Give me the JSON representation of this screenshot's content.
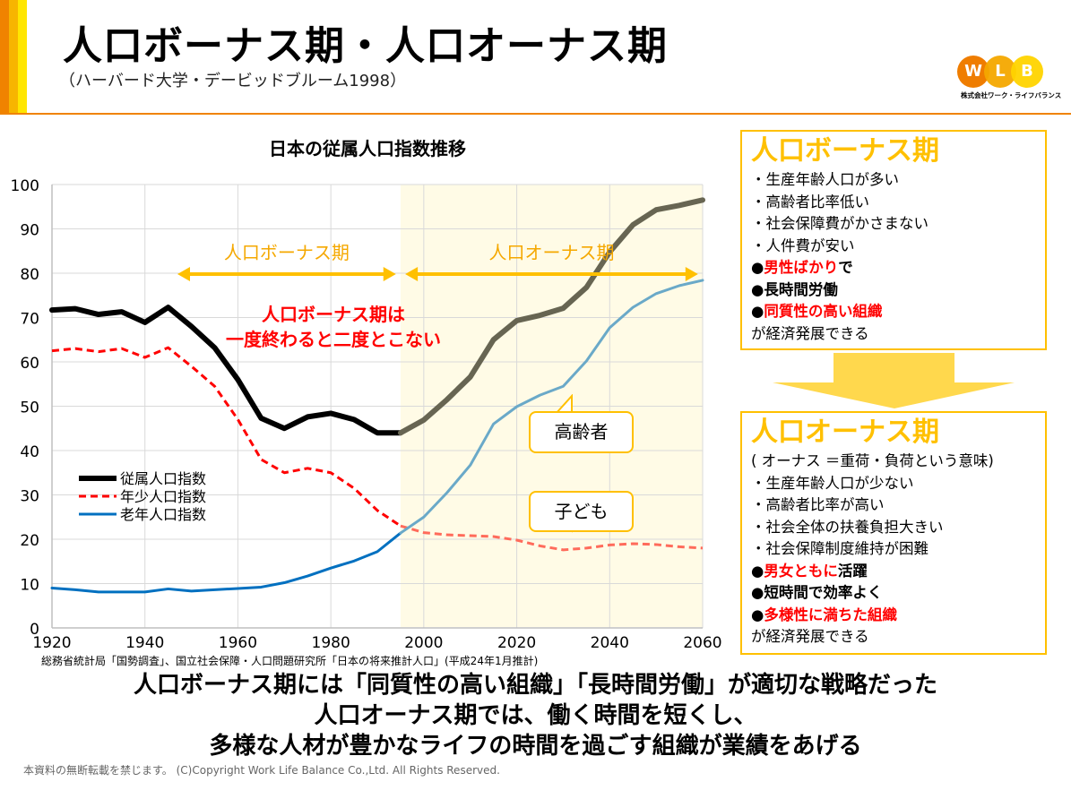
{
  "header": {
    "title": "人口ボーナス期・人口オーナス期",
    "subtitle": "（ハーバード大学・デービッドブルーム1998）",
    "stripe_colors": [
      "#f08300",
      "#f7b500",
      "#ffe600"
    ],
    "logo": {
      "letters": [
        "W",
        "L",
        "B"
      ],
      "colors": [
        "#ef7d00",
        "#f5a800",
        "#ffd400"
      ],
      "company": "株式会社ワーク・ライフバランス"
    }
  },
  "chart_data": {
    "type": "line",
    "title": "日本の従属人口指数推移",
    "xlim": [
      1920,
      2060
    ],
    "ylim": [
      0,
      100
    ],
    "x_ticks": [
      1920,
      1940,
      1960,
      1980,
      2000,
      2020,
      2040,
      2060
    ],
    "y_ticks": [
      0,
      10,
      20,
      30,
      40,
      50,
      60,
      70,
      80,
      90,
      100
    ],
    "grid": true,
    "legend_position": "left",
    "projection_start": 1995,
    "projection_shade_color": "#fffbe6",
    "x": [
      1920,
      1925,
      1930,
      1935,
      1940,
      1945,
      1950,
      1955,
      1960,
      1965,
      1970,
      1975,
      1980,
      1985,
      1990,
      1995,
      2000,
      2005,
      2010,
      2015,
      2020,
      2025,
      2030,
      2035,
      2040,
      2045,
      2050,
      2055,
      2060
    ],
    "series": [
      {
        "name": "従属人口指数",
        "color": "#000000",
        "projected_color": "#676552",
        "style": "solid-thick",
        "values": [
          71.7,
          72.0,
          70.7,
          71.3,
          68.9,
          72.3,
          68.0,
          63.2,
          56.0,
          47.3,
          45.0,
          47.6,
          48.4,
          47.0,
          44.0,
          44.0,
          46.9,
          51.5,
          56.6,
          65.0,
          69.3,
          70.5,
          72.1,
          76.8,
          84.8,
          90.9,
          94.3,
          95.3,
          96.5
        ]
      },
      {
        "name": "年少人口指数",
        "color": "#ff0000",
        "projected_color": "#ff6b5b",
        "style": "dashed",
        "values": [
          62.5,
          63.0,
          62.3,
          63.0,
          61.0,
          63.2,
          59.0,
          54.5,
          47.0,
          38.0,
          35.0,
          36.0,
          35.0,
          31.5,
          26.5,
          23.0,
          21.5,
          21.0,
          20.8,
          20.6,
          19.8,
          18.5,
          17.6,
          18.0,
          18.7,
          19.0,
          18.8,
          18.3,
          18.0
        ]
      },
      {
        "name": "老年人口指数",
        "color": "#0070c0",
        "projected_color": "#6aa9c8",
        "style": "solid",
        "values": [
          9.0,
          8.6,
          8.1,
          8.1,
          8.1,
          8.8,
          8.3,
          8.6,
          8.9,
          9.2,
          10.2,
          11.7,
          13.5,
          15.1,
          17.2,
          21.4,
          25.0,
          30.5,
          36.7,
          46.0,
          49.9,
          52.5,
          54.5,
          60.2,
          67.7,
          72.3,
          75.4,
          77.2,
          78.4
        ]
      }
    ],
    "annotations": {
      "bonus_label": "人口ボーナス期",
      "bonus_range": [
        1947,
        1995
      ],
      "onus_label": "人口オーナス期",
      "onus_range": [
        1995,
        2059
      ],
      "arrow_color": "#ffc000",
      "message_line1": "人口ボーナス期は",
      "message_line2": "一度終わると二度とこない",
      "message_color": "#ff0000",
      "callout_elderly": "高齢者",
      "callout_children": "子ども"
    }
  },
  "source": "総務省統計局「国勢調査」、国立社会保障・人口問題研究所「日本の将来推計人口」(平成24年1月推計)",
  "bonus_box": {
    "heading": "人口ボーナス期",
    "items": [
      "・生産年齢人口が多い",
      "・高齢者比率低い",
      "・社会保障費がかさまない",
      "・人件費が安い"
    ],
    "bullet": "●",
    "point1_red": "男性ばかり",
    "point1_rest": "で",
    "point2": "長時間労働",
    "point3_red": "同質性の高い組織",
    "closing": "が経済発展できる"
  },
  "onus_box": {
    "heading": "人口オーナス期",
    "note": "( オーナス ＝重荷・負荷という意味)",
    "items": [
      "・生産年齢人口が少ない",
      "・高齢者比率が高い",
      "・社会全体の扶養負担大きい",
      "・社会保障制度維持が困難"
    ],
    "bullet": "●",
    "point1_red": "男女ともに",
    "point1_rest": "活躍",
    "point2": "短時間で効率よく",
    "point3_red": "多様性に満ちた組織",
    "closing": "が経済発展できる"
  },
  "conclusion": [
    "人口ボーナス期には「同質性の高い組織」「長時間労働」が適切な戦略だった",
    "人口オーナス期では、働く時間を短くし、",
    "多様な人材が豊かなライフの時間を過ごす組織が業績をあげる"
  ],
  "copyright": "本資料の無断転載を禁じます。 (C)Copyright  Work Life Balance Co.,Ltd. All Rights Reserved."
}
